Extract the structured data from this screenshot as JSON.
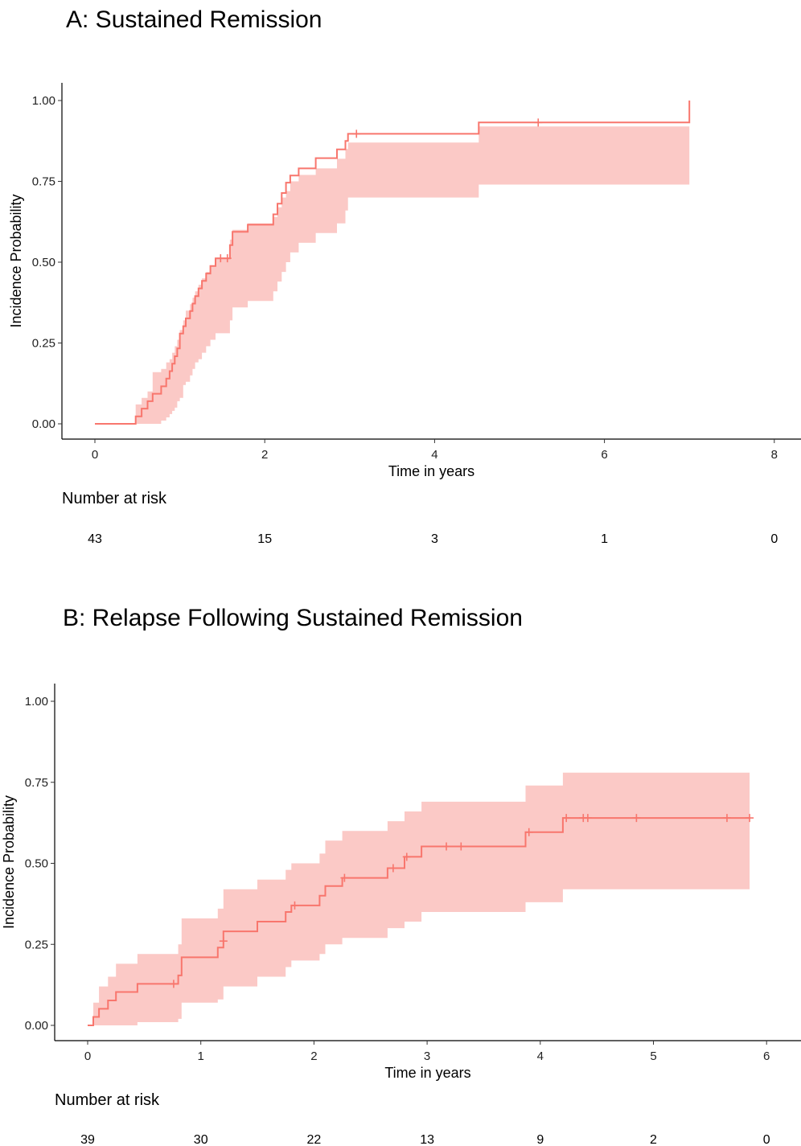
{
  "chart_data": [
    {
      "type": "line",
      "title": "A: Sustained Remission",
      "xlabel": "Time in years",
      "ylabel": "Incidence Probability",
      "xlim": [
        0,
        8
      ],
      "ylim": [
        0,
        1
      ],
      "x_ticks": [
        "0",
        "2",
        "4",
        "6",
        "8"
      ],
      "y_ticks": [
        "0.00",
        "0.25",
        "0.50",
        "0.75",
        "1.00"
      ],
      "color": "#F8766D",
      "band_color": "#FBC9C6",
      "grid": false,
      "curve": [
        [
          0,
          0
        ],
        [
          0.48,
          0
        ],
        [
          0.48,
          0.023
        ],
        [
          0.55,
          0.023
        ],
        [
          0.55,
          0.047
        ],
        [
          0.62,
          0.047
        ],
        [
          0.62,
          0.07
        ],
        [
          0.68,
          0.07
        ],
        [
          0.68,
          0.093
        ],
        [
          0.78,
          0.093
        ],
        [
          0.78,
          0.116
        ],
        [
          0.84,
          0.116
        ],
        [
          0.84,
          0.14
        ],
        [
          0.88,
          0.14
        ],
        [
          0.88,
          0.163
        ],
        [
          0.91,
          0.163
        ],
        [
          0.91,
          0.186
        ],
        [
          0.94,
          0.186
        ],
        [
          0.94,
          0.209
        ],
        [
          0.97,
          0.209
        ],
        [
          0.97,
          0.233
        ],
        [
          1.0,
          0.233
        ],
        [
          1.0,
          0.279
        ],
        [
          1.04,
          0.279
        ],
        [
          1.04,
          0.302
        ],
        [
          1.07,
          0.302
        ],
        [
          1.07,
          0.326
        ],
        [
          1.12,
          0.326
        ],
        [
          1.12,
          0.349
        ],
        [
          1.15,
          0.349
        ],
        [
          1.15,
          0.372
        ],
        [
          1.18,
          0.372
        ],
        [
          1.18,
          0.395
        ],
        [
          1.22,
          0.395
        ],
        [
          1.22,
          0.419
        ],
        [
          1.26,
          0.419
        ],
        [
          1.26,
          0.442
        ],
        [
          1.31,
          0.442
        ],
        [
          1.31,
          0.465
        ],
        [
          1.36,
          0.465
        ],
        [
          1.36,
          0.488
        ],
        [
          1.42,
          0.488
        ],
        [
          1.42,
          0.512
        ],
        [
          1.59,
          0.512
        ],
        [
          1.59,
          0.553
        ],
        [
          1.62,
          0.553
        ],
        [
          1.62,
          0.594
        ],
        [
          1.8,
          0.594
        ],
        [
          1.8,
          0.616
        ],
        [
          2.1,
          0.616
        ],
        [
          2.1,
          0.648
        ],
        [
          2.15,
          0.648
        ],
        [
          2.15,
          0.681
        ],
        [
          2.2,
          0.681
        ],
        [
          2.2,
          0.714
        ],
        [
          2.25,
          0.714
        ],
        [
          2.25,
          0.746
        ],
        [
          2.3,
          0.746
        ],
        [
          2.3,
          0.768
        ],
        [
          2.4,
          0.768
        ],
        [
          2.4,
          0.79
        ],
        [
          2.6,
          0.79
        ],
        [
          2.6,
          0.822
        ],
        [
          2.85,
          0.822
        ],
        [
          2.85,
          0.849
        ],
        [
          2.95,
          0.849
        ],
        [
          2.95,
          0.875
        ],
        [
          2.98,
          0.875
        ],
        [
          2.98,
          0.897
        ],
        [
          4.52,
          0.897
        ],
        [
          4.52,
          0.932
        ],
        [
          7.0,
          0.932
        ],
        [
          7.0,
          1.0
        ]
      ],
      "band": [
        [
          0.48,
          0.0,
          0.06
        ],
        [
          0.55,
          0.0,
          0.08
        ],
        [
          0.62,
          0.0,
          0.1
        ],
        [
          0.68,
          0.0,
          0.16
        ],
        [
          0.78,
          0.01,
          0.17
        ],
        [
          0.84,
          0.02,
          0.19
        ],
        [
          0.88,
          0.03,
          0.2
        ],
        [
          0.91,
          0.04,
          0.22
        ],
        [
          0.94,
          0.05,
          0.24
        ],
        [
          0.97,
          0.07,
          0.26
        ],
        [
          1.0,
          0.08,
          0.29
        ],
        [
          1.04,
          0.12,
          0.32
        ],
        [
          1.07,
          0.13,
          0.35
        ],
        [
          1.12,
          0.15,
          0.37
        ],
        [
          1.15,
          0.17,
          0.39
        ],
        [
          1.18,
          0.19,
          0.41
        ],
        [
          1.22,
          0.2,
          0.43
        ],
        [
          1.26,
          0.22,
          0.45
        ],
        [
          1.31,
          0.24,
          0.47
        ],
        [
          1.36,
          0.26,
          0.49
        ],
        [
          1.42,
          0.28,
          0.51
        ],
        [
          1.59,
          0.32,
          0.57
        ],
        [
          1.62,
          0.36,
          0.6
        ],
        [
          1.8,
          0.38,
          0.62
        ],
        [
          2.1,
          0.41,
          0.64
        ],
        [
          2.15,
          0.44,
          0.67
        ],
        [
          2.2,
          0.47,
          0.7
        ],
        [
          2.25,
          0.5,
          0.72
        ],
        [
          2.3,
          0.53,
          0.75
        ],
        [
          2.4,
          0.56,
          0.77
        ],
        [
          2.6,
          0.59,
          0.79
        ],
        [
          2.85,
          0.62,
          0.82
        ],
        [
          2.95,
          0.66,
          0.85
        ],
        [
          2.98,
          0.7,
          0.87
        ],
        [
          4.52,
          0.74,
          0.92
        ],
        [
          7.0,
          0.77,
          0.98
        ]
      ],
      "censored": [
        [
          1.48,
          0.512
        ],
        [
          1.56,
          0.512
        ],
        [
          3.08,
          0.897
        ],
        [
          5.22,
          0.932
        ]
      ],
      "risk_table": {
        "label": "Number at risk",
        "values": [
          "43",
          "15",
          "3",
          "1",
          "0"
        ]
      }
    },
    {
      "type": "line",
      "title": "B: Relapse Following Sustained Remission",
      "xlabel": "Time in years",
      "ylabel": "Incidence Probability",
      "xlim": [
        0,
        6
      ],
      "ylim": [
        0,
        1
      ],
      "x_ticks": [
        "0",
        "1",
        "2",
        "3",
        "4",
        "5",
        "6"
      ],
      "y_ticks": [
        "0.00",
        "0.25",
        "0.50",
        "0.75",
        "1.00"
      ],
      "color": "#F8766D",
      "band_color": "#FBC9C6",
      "grid": false,
      "curve": [
        [
          0,
          0
        ],
        [
          0.05,
          0
        ],
        [
          0.05,
          0.026
        ],
        [
          0.1,
          0.026
        ],
        [
          0.1,
          0.051
        ],
        [
          0.18,
          0.051
        ],
        [
          0.18,
          0.077
        ],
        [
          0.25,
          0.077
        ],
        [
          0.25,
          0.103
        ],
        [
          0.44,
          0.103
        ],
        [
          0.44,
          0.128
        ],
        [
          0.8,
          0.128
        ],
        [
          0.8,
          0.154
        ],
        [
          0.83,
          0.154
        ],
        [
          0.83,
          0.21
        ],
        [
          1.15,
          0.21
        ],
        [
          1.15,
          0.24
        ],
        [
          1.2,
          0.24
        ],
        [
          1.2,
          0.29
        ],
        [
          1.5,
          0.29
        ],
        [
          1.5,
          0.32
        ],
        [
          1.75,
          0.32
        ],
        [
          1.75,
          0.35
        ],
        [
          1.8,
          0.35
        ],
        [
          1.8,
          0.37
        ],
        [
          2.05,
          0.37
        ],
        [
          2.05,
          0.4
        ],
        [
          2.1,
          0.4
        ],
        [
          2.1,
          0.43
        ],
        [
          2.25,
          0.43
        ],
        [
          2.25,
          0.455
        ],
        [
          2.65,
          0.455
        ],
        [
          2.65,
          0.485
        ],
        [
          2.8,
          0.485
        ],
        [
          2.8,
          0.52
        ],
        [
          2.95,
          0.52
        ],
        [
          2.95,
          0.552
        ],
        [
          3.87,
          0.552
        ],
        [
          3.87,
          0.596
        ],
        [
          4.2,
          0.596
        ],
        [
          4.2,
          0.64
        ],
        [
          5.85,
          0.64
        ]
      ],
      "band": [
        [
          0.05,
          0.0,
          0.07
        ],
        [
          0.1,
          0.0,
          0.12
        ],
        [
          0.18,
          0.0,
          0.15
        ],
        [
          0.25,
          0.0,
          0.19
        ],
        [
          0.44,
          0.01,
          0.22
        ],
        [
          0.8,
          0.02,
          0.25
        ],
        [
          0.83,
          0.07,
          0.33
        ],
        [
          1.15,
          0.08,
          0.36
        ],
        [
          1.2,
          0.12,
          0.42
        ],
        [
          1.5,
          0.15,
          0.45
        ],
        [
          1.75,
          0.18,
          0.48
        ],
        [
          1.8,
          0.2,
          0.5
        ],
        [
          2.05,
          0.22,
          0.53
        ],
        [
          2.1,
          0.25,
          0.57
        ],
        [
          2.25,
          0.27,
          0.6
        ],
        [
          2.65,
          0.3,
          0.63
        ],
        [
          2.8,
          0.32,
          0.66
        ],
        [
          2.95,
          0.35,
          0.69
        ],
        [
          3.87,
          0.38,
          0.74
        ],
        [
          4.2,
          0.42,
          0.78
        ],
        [
          5.85,
          0.42,
          0.78
        ]
      ],
      "censored": [
        [
          0.76,
          0.128
        ],
        [
          1.2,
          0.26
        ],
        [
          1.83,
          0.37
        ],
        [
          2.27,
          0.455
        ],
        [
          2.7,
          0.485
        ],
        [
          2.82,
          0.52
        ],
        [
          3.17,
          0.552
        ],
        [
          3.3,
          0.552
        ],
        [
          3.9,
          0.596
        ],
        [
          4.23,
          0.64
        ],
        [
          4.38,
          0.64
        ],
        [
          4.42,
          0.64
        ],
        [
          4.85,
          0.64
        ],
        [
          5.65,
          0.64
        ],
        [
          5.85,
          0.64
        ]
      ],
      "risk_table": {
        "label": "Number at risk",
        "values": [
          "39",
          "30",
          "22",
          "13",
          "9",
          "2",
          "0"
        ]
      }
    }
  ]
}
